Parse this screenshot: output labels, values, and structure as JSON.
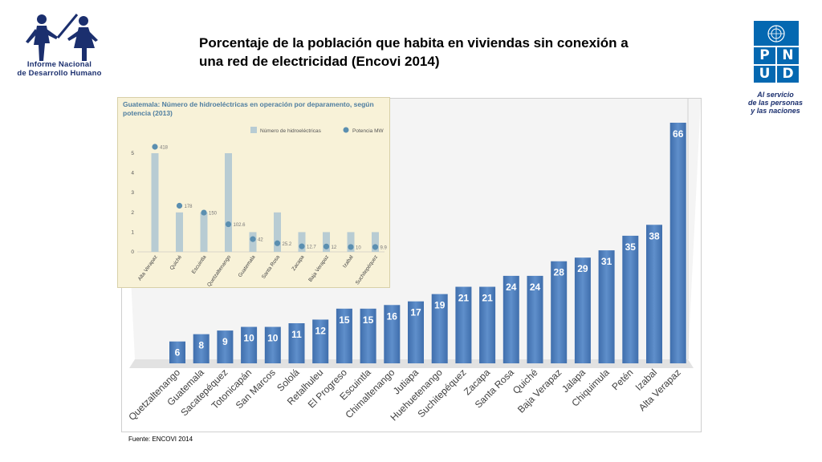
{
  "logo": {
    "line1": "Informe   Nacional",
    "line2": "de Desarrollo Humano"
  },
  "title": "Porcentaje de la población que habita en viviendas sin conexión a una red de electricidad (Encovi 2014)",
  "pnud": {
    "letters": [
      "P",
      "N",
      "U",
      "D"
    ],
    "tagline1": "Al servicio",
    "tagline2": "de las personas",
    "tagline3": "y las naciones",
    "color": "#0468b1"
  },
  "source": "Fuente: ENCOVI 2014",
  "colors": {
    "bar": "#4a7ab8",
    "bar_light": "#6a97cf",
    "inset_bar": "#b8ccd3",
    "inset_dot": "#5b8fb0"
  },
  "chart_data": [
    {
      "type": "bar",
      "title": "Porcentaje de la población que habita en viviendas sin conexión a una red de electricidad (Encovi 2014)",
      "categories": [
        "Quetzaltenango",
        "Guatemala",
        "Sacatepéquez",
        "Totonicapán",
        "San Marcos",
        "Sololá",
        "Retalhuleu",
        "El Progreso",
        "Escuintla",
        "Chimaltenango",
        "Jutiapa",
        "Huehuetenango",
        "Suchitepéquez",
        "Zacapa",
        "Santa Rosa",
        "Quiché",
        "Baja Verapaz",
        "Jalapa",
        "Chiquimula",
        "Petén",
        "Izabal",
        "Alta Verapaz"
      ],
      "values": [
        6,
        8,
        9,
        10,
        10,
        11,
        12,
        15,
        15,
        16,
        17,
        19,
        21,
        21,
        24,
        24,
        28,
        29,
        31,
        35,
        38,
        66
      ],
      "xlabel": "",
      "ylabel": "",
      "ylim": [
        0,
        66
      ],
      "grid": false
    },
    {
      "type": "bar",
      "title": "Guatemala: Número de hidroeléctricas en operación por deparamento, según potencia (2013)",
      "legend": [
        "Número de hidroeléctricas",
        "Potencia MW"
      ],
      "legend_position": "top-right",
      "categories": [
        "Alta Verapaz",
        "Quiché",
        "Escuintla",
        "Quetzaltenango",
        "Guatemala",
        "Santa Rosa",
        "Zacapa",
        "Baja Verapaz",
        "Izabal",
        "Suchitepéquez"
      ],
      "series": [
        {
          "name": "Número de hidroeléctricas",
          "values": [
            5,
            2,
            2,
            5,
            1,
            2,
            1,
            1,
            1,
            1
          ]
        },
        {
          "name": "Potencia MW",
          "values": [
            418,
            178,
            150,
            102.6,
            42,
            25.2,
            12.7,
            12,
            10,
            9.9
          ]
        }
      ],
      "yticks": [
        "0",
        "1",
        "2",
        "3",
        "4",
        "5"
      ],
      "point_labels": [
        "418",
        "178",
        "150",
        "102.6",
        "42",
        "25.2",
        "12.7",
        "12",
        "10",
        "9.9"
      ],
      "ylim": [
        0,
        5
      ]
    }
  ]
}
